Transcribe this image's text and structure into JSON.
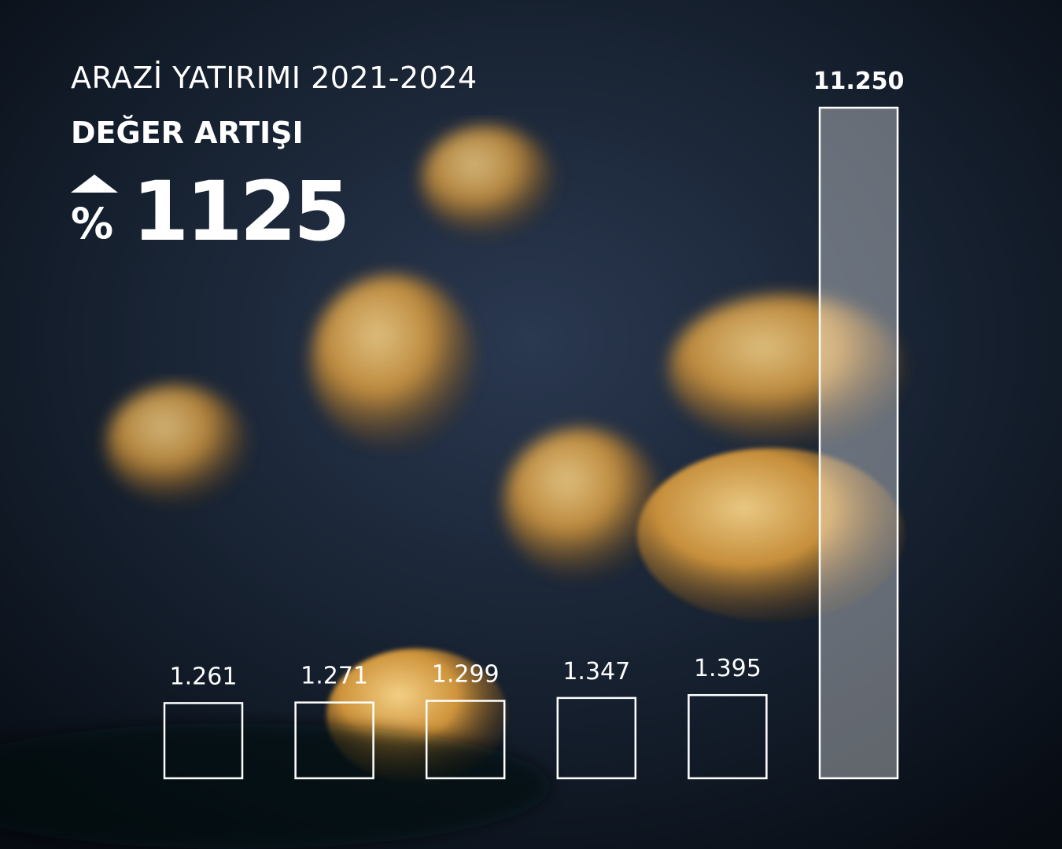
{
  "chart_data": {
    "type": "bar",
    "title": "ARAZİ YATIRIMI 2021-2024",
    "subtitle": "DEĞER ARTIŞI",
    "highlight_symbol": "%",
    "highlight_value": "1125",
    "values": [
      1261,
      1271,
      1299,
      1347,
      1395,
      11250
    ],
    "value_labels": [
      "1.261",
      "1.271",
      "1.299",
      "1.347",
      "1.395",
      "11.250"
    ],
    "color": "#ffffff"
  }
}
